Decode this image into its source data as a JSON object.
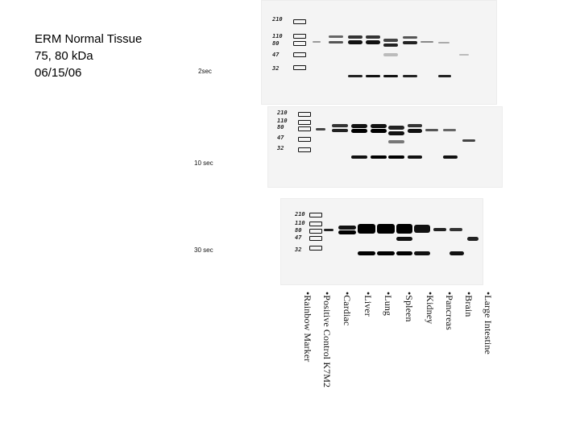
{
  "title": {
    "line1": "ERM Normal Tissue",
    "line2": "75, 80 kDa",
    "line3": "06/15/06"
  },
  "exposures": [
    "2sec",
    "10 sec",
    "30 sec"
  ],
  "marker_labels": [
    "210",
    "110",
    "80",
    "47",
    "32"
  ],
  "lanes": [
    "•Rainbow Marker",
    "•Positive Control K7M2",
    "•Cardiac",
    "•Liver",
    "•Lung",
    "•Spleen",
    "•Kidney",
    "•Pancreas",
    "•Brain",
    "•Large Intestine"
  ]
}
